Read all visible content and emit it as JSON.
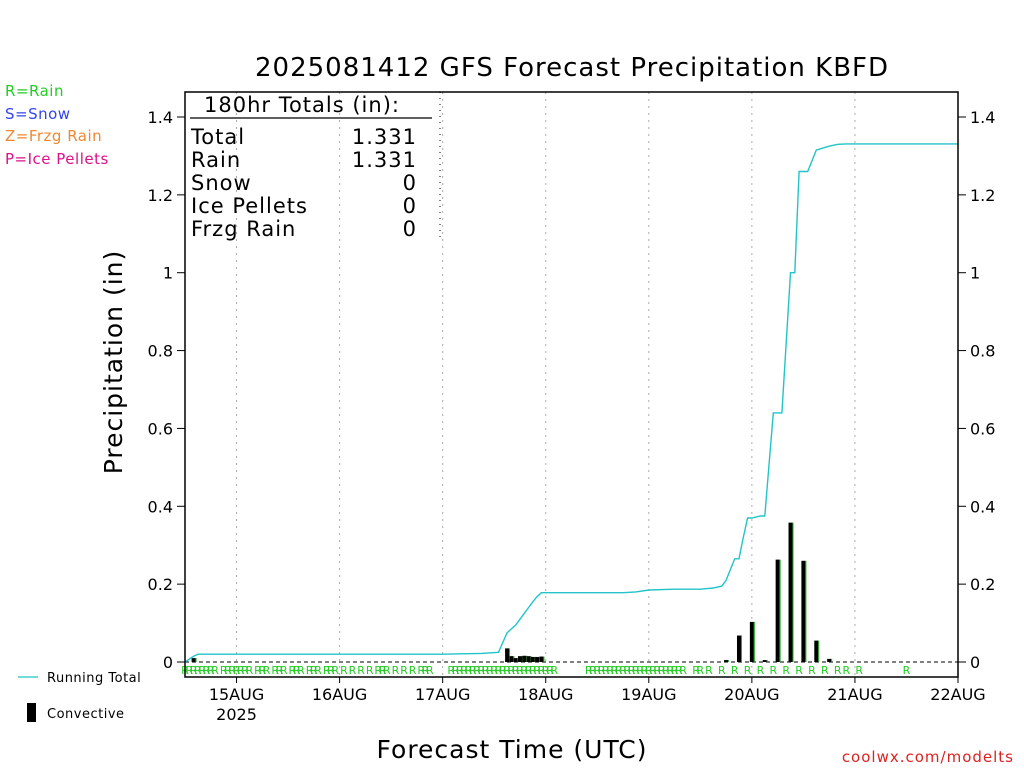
{
  "chart_data": {
    "type": "line+bar",
    "title": "2025081412 GFS Forecast Precipitation KBFD",
    "xlabel": "Forecast Time (UTC)",
    "ylabel": "Precipitation (in)",
    "ylim": [
      0,
      1.45
    ],
    "y_ticks": [
      "0",
      "0.2",
      "0.4",
      "0.6",
      "0.8",
      "1",
      "1.2",
      "1.4"
    ],
    "x_range_hours": [
      0,
      180
    ],
    "x_ticks": [
      {
        "hour": 12,
        "label": "15AUG",
        "sublabel": "2025"
      },
      {
        "hour": 36,
        "label": "16AUG"
      },
      {
        "hour": 60,
        "label": "17AUG"
      },
      {
        "hour": 84,
        "label": "18AUG"
      },
      {
        "hour": 108,
        "label": "19AUG"
      },
      {
        "hour": 132,
        "label": "20AUG"
      },
      {
        "hour": 156,
        "label": "21AUG"
      },
      {
        "hour": 180,
        "label": "22AUG"
      }
    ],
    "grid": "vertical dotted at day boundaries",
    "series": [
      {
        "name": "Running Total",
        "color": "#22c4c9",
        "x": [
          0,
          2,
          3,
          6,
          12,
          24,
          36,
          48,
          60,
          69,
          73,
          74,
          75,
          76,
          77,
          78,
          79,
          80,
          81,
          82,
          83,
          84,
          86,
          90,
          96,
          102,
          105,
          108,
          114,
          120,
          123,
          125,
          126,
          128,
          129,
          130,
          131,
          132,
          134,
          135,
          137,
          139,
          141,
          142,
          143,
          145,
          147,
          150,
          152,
          154,
          156,
          162,
          168,
          174,
          180
        ],
        "y": [
          0,
          0.015,
          0.02,
          0.02,
          0.02,
          0.02,
          0.02,
          0.02,
          0.02,
          0.022,
          0.025,
          0.05,
          0.075,
          0.085,
          0.095,
          0.11,
          0.125,
          0.14,
          0.155,
          0.168,
          0.178,
          0.178,
          0.178,
          0.178,
          0.178,
          0.178,
          0.18,
          0.185,
          0.187,
          0.187,
          0.19,
          0.195,
          0.21,
          0.265,
          0.265,
          0.32,
          0.37,
          0.37,
          0.375,
          0.375,
          0.64,
          0.64,
          1.0,
          1.0,
          1.26,
          1.26,
          1.315,
          1.325,
          1.33,
          1.331,
          1.331,
          1.331,
          1.331,
          1.331,
          1.331
        ]
      },
      {
        "name": "Convective",
        "type": "bar",
        "color": "#000000",
        "x": [
          2,
          75,
          76,
          77,
          78,
          79,
          80,
          81,
          82,
          83,
          126,
          129,
          132,
          135,
          138,
          141,
          144,
          147,
          150
        ],
        "values": [
          0.01,
          0.035,
          0.015,
          0.01,
          0.015,
          0.016,
          0.015,
          0.013,
          0.013,
          0.014,
          0.005,
          0.068,
          0.103,
          0.005,
          0.263,
          0.358,
          0.26,
          0.055,
          0.008
        ]
      }
    ],
    "precip_type_hours": [
      0,
      1,
      2,
      3,
      4,
      5,
      6,
      7,
      9,
      10,
      11,
      12,
      13,
      14,
      15,
      17,
      18,
      19,
      21,
      22,
      23,
      25,
      26,
      27,
      29,
      30,
      31,
      33,
      34,
      35,
      37,
      39,
      41,
      43,
      45,
      46,
      47,
      49,
      51,
      53,
      55,
      56,
      57,
      62,
      63,
      64,
      65,
      66,
      67,
      68,
      69,
      70,
      71,
      72,
      73,
      74,
      75,
      76,
      77,
      78,
      79,
      80,
      81,
      82,
      83,
      84,
      85,
      86,
      94,
      95,
      96,
      97,
      98,
      99,
      100,
      101,
      102,
      103,
      104,
      105,
      106,
      107,
      108,
      109,
      110,
      111,
      112,
      113,
      114,
      115,
      116,
      119,
      120,
      122,
      125,
      128,
      131,
      134,
      137,
      140,
      143,
      146,
      149,
      152,
      154,
      157,
      168
    ],
    "precip_type_letter": "R",
    "totals_box": {
      "header": "180hr Totals (in):",
      "rows": [
        {
          "label": "Total",
          "value": "1.331"
        },
        {
          "label": "Rain",
          "value": "1.331"
        },
        {
          "label": "Snow",
          "value": "0"
        },
        {
          "label": "Ice Pellets",
          "value": "0"
        },
        {
          "label": "Frzg Rain",
          "value": "0"
        }
      ]
    }
  },
  "legend_types": [
    {
      "text": "R=Rain",
      "color": "#22cc22"
    },
    {
      "text": "S=Snow",
      "color": "#3344ee"
    },
    {
      "text": "Z=Frzg Rain",
      "color": "#ee8833"
    },
    {
      "text": "P=Ice Pellets",
      "color": "#dd1188"
    }
  ],
  "legend_bottom": {
    "running_total": "Running Total",
    "convective": "Convective"
  },
  "credit": "coolwx.com/modelts",
  "colors": {
    "running_total": "#22c4c9",
    "convective": "#000000",
    "large_scale": "#22aa22",
    "rain_letter": "#22cc22",
    "credit": "#dd2222"
  }
}
